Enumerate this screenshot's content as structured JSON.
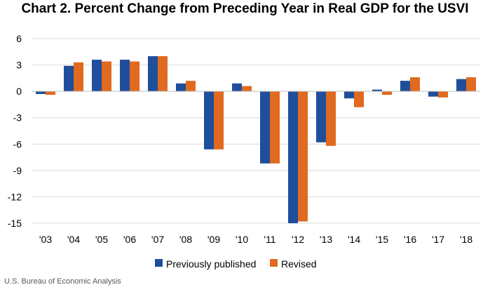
{
  "chart_data": {
    "type": "bar",
    "title": "Chart 2. Percent Change from Preceding Year in Real GDP for the USVI",
    "xlabel": "",
    "ylabel": "",
    "categories": [
      "'03",
      "'04",
      "'05",
      "'06",
      "'07",
      "'08",
      "'09",
      "'10",
      "'11",
      "'12",
      "'13",
      "'14",
      "'15",
      "'16",
      "'17",
      "'18"
    ],
    "series": [
      {
        "name": "Previously published",
        "color": "#1f4e9c",
        "values": [
          -0.3,
          2.9,
          3.6,
          3.6,
          4.0,
          0.9,
          -6.6,
          0.9,
          -8.2,
          -15.0,
          -5.8,
          -0.8,
          0.2,
          1.2,
          -0.6,
          1.4
        ]
      },
      {
        "name": "Revised",
        "color": "#e06a1f",
        "values": [
          -0.4,
          3.3,
          3.4,
          3.4,
          4.0,
          1.2,
          -6.6,
          0.6,
          -8.2,
          -14.8,
          -6.2,
          -1.8,
          -0.4,
          1.6,
          -0.7,
          1.6
        ]
      }
    ],
    "ylim": [
      -15,
      6
    ],
    "yticks": [
      6,
      3,
      0,
      -3,
      -6,
      -9,
      -12,
      -15
    ],
    "ytick_labels": [
      "6",
      "3",
      "0",
      "-3",
      "-6",
      "-9",
      "-12",
      "-15"
    ],
    "grid": true,
    "legend_position": "bottom",
    "gridline_color": "#d9d9d9",
    "zero_line_color": "#bfbfbf"
  },
  "source": "U.S. Bureau of Economic Analysis"
}
